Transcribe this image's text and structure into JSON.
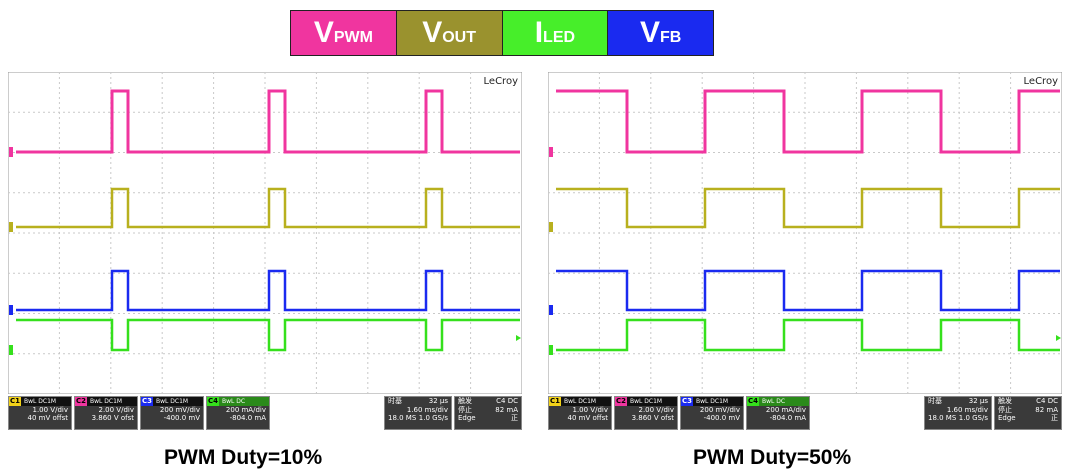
{
  "legend": [
    {
      "main": "V",
      "sub": "PWM",
      "color": "#f0359f"
    },
    {
      "main": "V",
      "sub": "OUT",
      "color": "#9a922e"
    },
    {
      "main": "I",
      "sub": "LED",
      "color": "#47ee2a"
    },
    {
      "main": "V",
      "sub": "FB",
      "color": "#1a2af0"
    }
  ],
  "scopes": [
    {
      "brand": "LeCroy",
      "caption": "PWM Duty=10%",
      "duty_percent": 10,
      "channels": [
        {
          "tag": "C1",
          "mode": "BwL DC1M",
          "line1": "1.00 V/div",
          "line2": "40 mV offst"
        },
        {
          "tag": "C2",
          "mode": "BwL DC1M",
          "line1": "2.00 V/div",
          "line2": "3.860 V ofst"
        },
        {
          "tag": "C3",
          "mode": "BwL DC1M",
          "line1": "200 mV/div",
          "line2": "-400.0 mV"
        },
        {
          "tag": "C4",
          "mode": "BwL DC",
          "line1": "200 mA/div",
          "line2": "-804.0 mA"
        }
      ],
      "timebase": {
        "h1": "时基",
        "h2": "32 µs",
        "r1": "1.60 ms/div",
        "r2a": "18.0 MS",
        "r2b": "1.0 GS/s"
      },
      "trigger": {
        "h1": "触发",
        "h2": "C4 DC",
        "r1a": "停止",
        "r1b": "82 mA",
        "r2a": "Edge",
        "r2b": "正"
      }
    },
    {
      "brand": "LeCroy",
      "caption": "PWM Duty=50%",
      "duty_percent": 50,
      "channels": [
        {
          "tag": "C1",
          "mode": "BwL DC1M",
          "line1": "1.00 V/div",
          "line2": "40 mV offst"
        },
        {
          "tag": "C2",
          "mode": "BwL DC1M",
          "line1": "2.00 V/div",
          "line2": "3.860 V ofst"
        },
        {
          "tag": "C3",
          "mode": "BwL DC1M",
          "line1": "200 mV/div",
          "line2": "-400.0 mV"
        },
        {
          "tag": "C4",
          "mode": "BwL DC",
          "line1": "200 mA/div",
          "line2": "-804.0 mA"
        }
      ],
      "timebase": {
        "h1": "时基",
        "h2": "32 µs",
        "r1": "1.60 ms/div",
        "r2a": "18.0 MS",
        "r2b": "1.0 GS/s"
      },
      "trigger": {
        "h1": "触发",
        "h2": "C4 DC",
        "r1a": "停止",
        "r1b": "82 mA",
        "r2a": "Edge",
        "r2b": "正"
      }
    }
  ],
  "colors": {
    "pwm": "#f0359f",
    "vout": "#b8b01e",
    "led": "#35e01c",
    "fb": "#1a2af0",
    "grid": "#c9c9c9",
    "tag_c1": "#f2d21a",
    "tag_c2": "#f0359f",
    "tag_c3": "#1a2af0",
    "tag_c4": "#35e01c"
  }
}
